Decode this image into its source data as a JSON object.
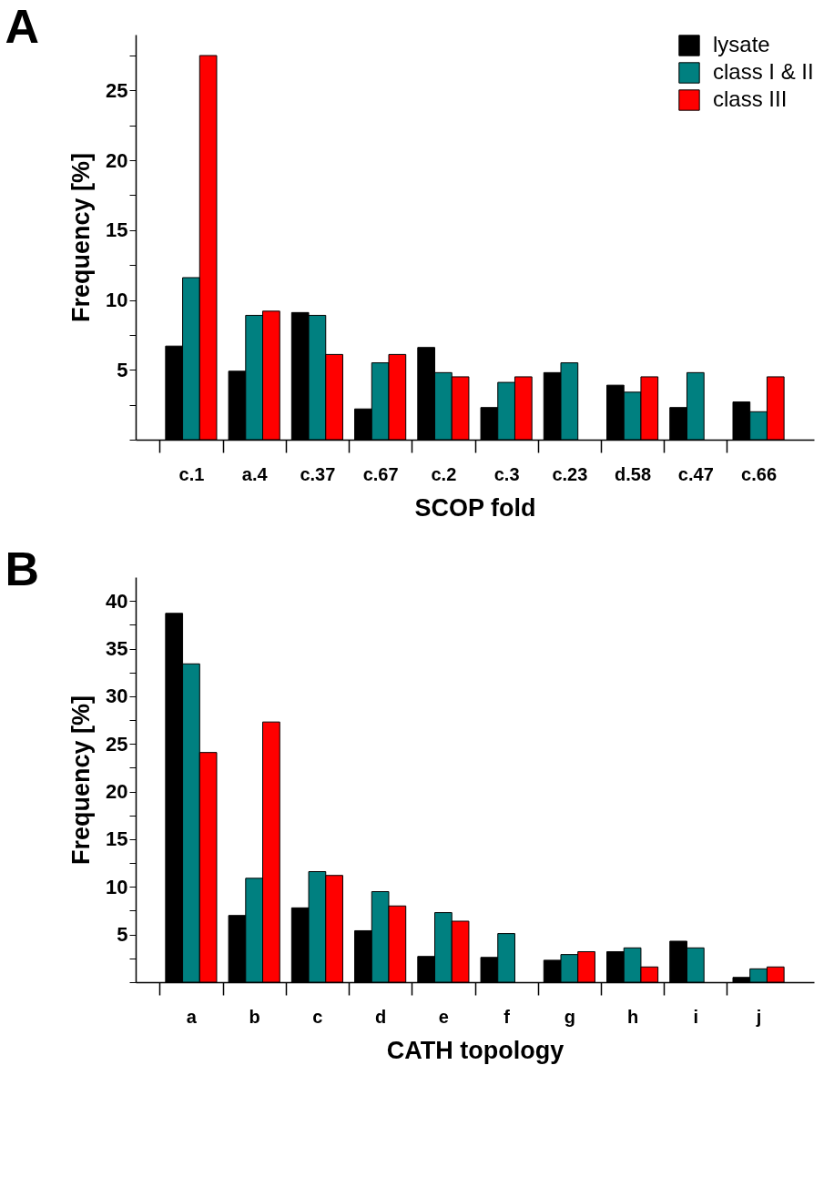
{
  "chart_data": [
    {
      "type": "bar",
      "title": "A",
      "xlabel": "SCOP fold",
      "ylabel": "Frequency [%]",
      "categories": [
        "c.1",
        "a.4",
        "c.37",
        "c.67",
        "c.2",
        "c.3",
        "c.23",
        "d.58",
        "c.47",
        "c.66"
      ],
      "series": [
        {
          "name": "lysate",
          "color": "#000000",
          "values": [
            6.7,
            4.9,
            9.1,
            2.2,
            6.6,
            2.3,
            4.8,
            3.9,
            2.3,
            2.7
          ]
        },
        {
          "name": "class I & II",
          "color": "#008080",
          "values": [
            11.6,
            8.9,
            8.9,
            5.5,
            4.8,
            4.1,
            5.5,
            3.4,
            4.8,
            2.0
          ]
        },
        {
          "name": "class III",
          "color": "#ff0000",
          "values": [
            27.5,
            9.2,
            6.1,
            6.1,
            4.5,
            4.5,
            null,
            4.5,
            null,
            4.5
          ]
        }
      ],
      "ylim": [
        0,
        29
      ],
      "yticks": [
        {
          "value": 0,
          "label": null
        },
        {
          "value": 2.5,
          "label": null
        },
        5,
        {
          "value": 7.5,
          "label": null
        },
        10,
        {
          "value": 12.5,
          "label": null
        },
        15,
        {
          "value": 17.5,
          "label": null
        },
        20,
        {
          "value": 22.5,
          "label": null
        },
        25,
        {
          "value": 27.5,
          "label": null
        }
      ],
      "grid": false,
      "legend": "top right"
    },
    {
      "type": "bar",
      "title": "B",
      "xlabel": "CATH topology",
      "ylabel": "Frequency [%]",
      "categories": [
        "a",
        "b",
        "c",
        "d",
        "e",
        "f",
        "g",
        "h",
        "i",
        "j"
      ],
      "series": [
        {
          "color": "#000000",
          "values": [
            38.7,
            7.0,
            7.8,
            5.4,
            2.7,
            2.6,
            2.3,
            3.2,
            4.3,
            0.5
          ]
        },
        {
          "color": "#008080",
          "values": [
            33.4,
            10.9,
            11.6,
            9.5,
            7.3,
            5.1,
            2.9,
            3.6,
            3.6,
            1.4
          ]
        },
        {
          "color": "#ff0000",
          "values": [
            24.1,
            27.3,
            11.2,
            8.0,
            6.4,
            null,
            3.2,
            1.6,
            null,
            1.6
          ]
        }
      ],
      "ylim": [
        0,
        42.5
      ],
      "yticks": [
        {
          "value": 0,
          "label": null
        },
        {
          "value": 2.5,
          "label": null
        },
        5,
        {
          "value": 7.5,
          "label": null
        },
        10,
        {
          "value": 12.5,
          "label": null
        },
        15,
        {
          "value": 17.5,
          "label": null
        },
        20,
        {
          "value": 22.5,
          "label": null
        },
        25,
        {
          "value": 27.5,
          "label": null
        },
        30,
        {
          "value": 32.5,
          "label": null
        },
        35,
        {
          "value": 37.5,
          "label": null
        },
        40
      ],
      "grid": false,
      "legend": false
    }
  ]
}
